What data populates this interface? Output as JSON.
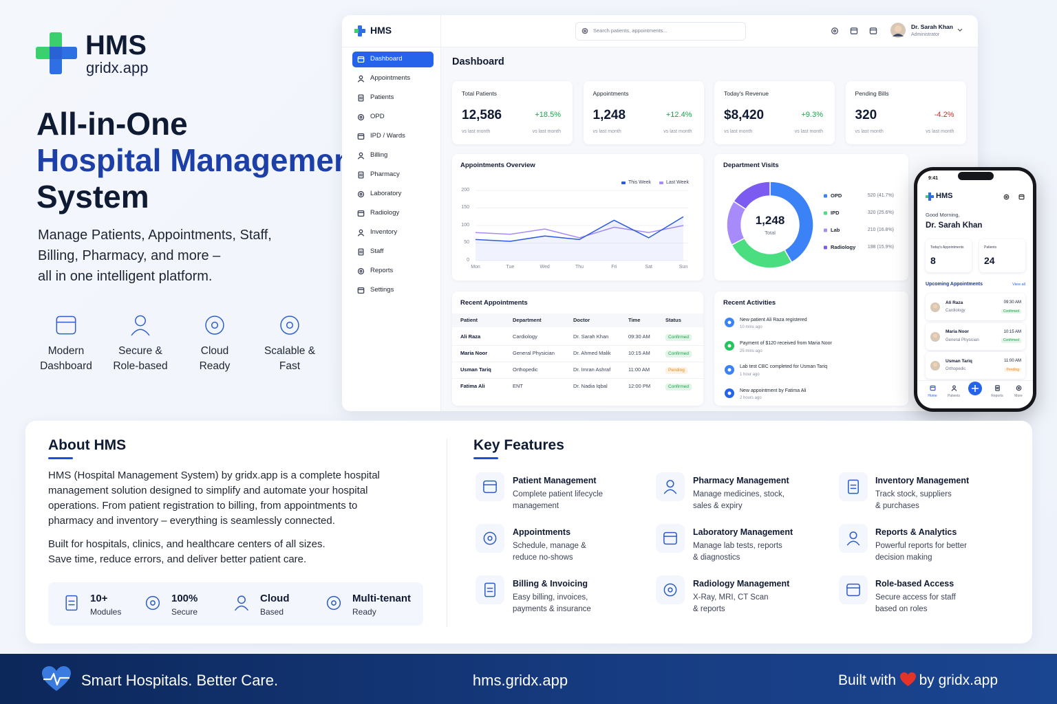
{
  "brand": {
    "name": "HMS",
    "domain": "gridx.app"
  },
  "hero": {
    "title_line1": "All-in-One",
    "title_line2": "Hospital Management",
    "title_line3": "System",
    "subtitle_lines": [
      "Manage Patients, Appointments, Staff,",
      "Billing, Pharmacy, and more –",
      "all in one intelligent platform."
    ]
  },
  "highlights": [
    {
      "line1": "Modern",
      "line2": "Dashboard"
    },
    {
      "line1": "Secure &",
      "line2": "Role-based"
    },
    {
      "line1": "Cloud",
      "line2": "Ready"
    },
    {
      "line1": "Scalable &",
      "line2": "Fast"
    }
  ],
  "dashboard": {
    "logo": "HMS",
    "search_placeholder": "Search patients, appointments...",
    "user": {
      "name": "Dr. Sarah Khan",
      "role": "Administrator"
    },
    "nav": [
      "Dashboard",
      "Appointments",
      "Patients",
      "OPD",
      "IPD / Wards",
      "Billing",
      "Pharmacy",
      "Laboratory",
      "Radiology",
      "Inventory",
      "Staff",
      "Reports",
      "Settings"
    ],
    "page_title": "Dashboard",
    "stats": [
      {
        "label": "Total Patients",
        "value": "12,586",
        "change": "+18.5%",
        "change_color": "#16a34a",
        "value_note": "vs last month",
        "change_note": "vs last month"
      },
      {
        "label": "Appointments",
        "value": "1,248",
        "change": "+12.4%",
        "change_color": "#16a34a",
        "value_note": "vs last month",
        "change_note": "vs last month"
      },
      {
        "label": "Today's Revenue",
        "value": "$8,420",
        "change": "+9.3%",
        "change_color": "#16a34a",
        "value_note": "vs last month",
        "change_note": "vs last month"
      },
      {
        "label": "Pending Bills",
        "value": "320",
        "change": "-4.2%",
        "change_color": "#dc2626",
        "value_note": "vs last month",
        "change_note": "vs last month"
      }
    ],
    "appointments_chart": {
      "type": "line",
      "title": "Appointments Overview",
      "categories": [
        "Mon",
        "Tue",
        "Wed",
        "Thu",
        "Fri",
        "Sat",
        "Sun"
      ],
      "ylim": [
        0,
        200
      ],
      "yticks": [
        0,
        50,
        100,
        150,
        200
      ],
      "series": [
        {
          "name": "This Week",
          "color": "#2b59e0",
          "values": [
            60,
            55,
            70,
            60,
            115,
            65,
            125
          ]
        },
        {
          "name": "Last Week",
          "color": "#a78bfa",
          "values": [
            80,
            75,
            90,
            65,
            95,
            80,
            100
          ]
        }
      ]
    },
    "department_chart": {
      "type": "pie",
      "title": "Department Visits",
      "center_value": "1,248",
      "center_label": "Total",
      "categories": [
        "OPD",
        "IPD",
        "Lab",
        "Radiology"
      ],
      "values": [
        520,
        320,
        210,
        198
      ],
      "value_labels": [
        "520 (41.7%)",
        "320 (25.6%)",
        "210 (16.8%)",
        "198 (15.9%)"
      ],
      "colors": [
        "#3b82f6",
        "#4ade80",
        "#a78bfa",
        "#7c5cf0"
      ]
    },
    "recent_appointments": {
      "title": "Recent Appointments",
      "columns": [
        "Patient",
        "Department",
        "Doctor",
        "Time",
        "Status"
      ],
      "rows": [
        [
          "Ali Raza",
          "Cardiology",
          "Dr. Sarah Khan",
          "09:30 AM",
          "Confirmed"
        ],
        [
          "Maria Noor",
          "General Physician",
          "Dr. Ahmed Malik",
          "10:15 AM",
          "Confirmed"
        ],
        [
          "Usman Tariq",
          "Orthopedic",
          "Dr. Imran Ashraf",
          "11:00 AM",
          "Pending"
        ],
        [
          "Fatima Ali",
          "ENT",
          "Dr. Nadia Iqbal",
          "12:00 PM",
          "Confirmed"
        ]
      ],
      "status_colors": {
        "Confirmed": "#16a34a",
        "Pending": "#ea8a1a"
      }
    },
    "recent_activities": {
      "title": "Recent Activities",
      "items": [
        {
          "text": "New patient Ali Raza registered",
          "time": "10 mins ago",
          "color": "#3b82f6"
        },
        {
          "text": "Payment of $120 received from Maria Noor",
          "time": "25 mins ago",
          "color": "#22c55e"
        },
        {
          "text": "Lab test CBC completed for Usman Tariq",
          "time": "1 hour ago",
          "color": "#3b82f6"
        },
        {
          "text": "New appointment by Fatima Ali",
          "time": "2 hours ago",
          "color": "#2563eb"
        }
      ]
    }
  },
  "mobile": {
    "time": "9:41",
    "logo": "HMS",
    "greeting": "Good Morning,",
    "name": "Dr. Sarah Khan",
    "stats": [
      {
        "label": "Today's Appointments",
        "value": "8"
      },
      {
        "label": "Patients",
        "value": "24"
      }
    ],
    "upcoming_title": "Upcoming Appointments",
    "view_all": "View all",
    "appointments": [
      {
        "name": "Ali Raza",
        "department": "Cardiology",
        "time": "09:30 AM",
        "status": "Confirmed"
      },
      {
        "name": "Maria Noor",
        "department": "General Physician",
        "time": "10:15 AM",
        "status": "Confirmed"
      },
      {
        "name": "Usman Tariq",
        "department": "Orthopedic",
        "time": "11:00 AM",
        "status": "Pending"
      }
    ],
    "tabs": [
      "Home",
      "Patients",
      "Reports",
      "More"
    ]
  },
  "about": {
    "title": "About HMS",
    "paragraph1": [
      "HMS (Hospital Management System) by gridx.app is a complete hospital",
      "management solution designed to simplify and automate your hospital",
      "operations. From patient registration to billing, from appointments to",
      "pharmacy and inventory – everything is seamlessly connected."
    ],
    "paragraph2": [
      "Built for hospitals, clinics, and healthcare centers of all sizes.",
      "Save time, reduce errors, and deliver better patient care."
    ],
    "stats": [
      {
        "value": "10+",
        "label": "Modules"
      },
      {
        "value": "100%",
        "label": "Secure"
      },
      {
        "value": "Cloud",
        "label": "Based"
      },
      {
        "value": "Multi-tenant",
        "label": "Ready"
      }
    ]
  },
  "features": {
    "title": "Key Features",
    "items": [
      {
        "title": "Patient Management",
        "description": [
          "Complete patient lifecycle",
          "management"
        ]
      },
      {
        "title": "Pharmacy Management",
        "description": [
          "Manage medicines, stock,",
          "sales & expiry"
        ]
      },
      {
        "title": "Inventory Management",
        "description": [
          "Track stock, suppliers",
          "& purchases"
        ]
      },
      {
        "title": "Appointments",
        "description": [
          "Schedule, manage &",
          "reduce no-shows"
        ]
      },
      {
        "title": "Laboratory Management",
        "description": [
          "Manage lab tests, reports",
          "& diagnostics"
        ]
      },
      {
        "title": "Reports & Analytics",
        "description": [
          "Powerful reports for better",
          "decision making"
        ]
      },
      {
        "title": "Billing & Invoicing",
        "description": [
          "Easy billing, invoices,",
          "payments & insurance"
        ]
      },
      {
        "title": "Radiology Management",
        "description": [
          "X-Ray, MRI, CT Scan",
          "& reports"
        ]
      },
      {
        "title": "Role-based Access",
        "description": [
          "Secure access for staff",
          "based on roles"
        ]
      }
    ]
  },
  "footer": {
    "tagline": "Smart Hospitals. Better Care.",
    "url": "hms.gridx.app",
    "built_prefix": "Built with",
    "built_suffix": "by gridx.app"
  }
}
